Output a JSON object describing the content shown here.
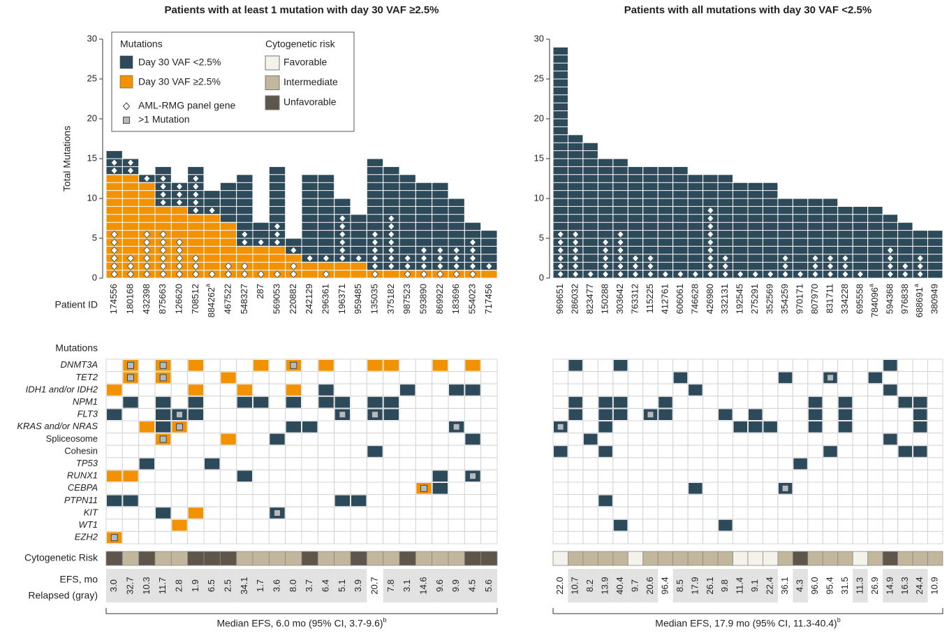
{
  "legend": {
    "mutations_title": "Mutations",
    "panel_gene": "AML-RMG panel gene",
    "multi": ">1 Mutation",
    "cytogenetic_title": "Cytogenetic risk"
  },
  "row_labels": {
    "patient_id": "Patient ID",
    "mutations": "Mutations",
    "cytogenetic": "Cytogenetic Risk",
    "efs": "EFS, mo",
    "relapsed": "Relapsed (gray)"
  },
  "mutation_rows": [
    {
      "label": "DNMT3A",
      "italic": true
    },
    {
      "label": "TET2",
      "italic": true
    },
    {
      "label": "IDH1 and/or IDH2",
      "italic": true
    },
    {
      "label": "NPM1",
      "italic": true
    },
    {
      "label": "FLT3",
      "italic": true
    },
    {
      "label": "KRAS and/or NRAS",
      "italic": true
    },
    {
      "label": "Spliceosome",
      "italic": false
    },
    {
      "label": "Cohesin",
      "italic": false
    },
    {
      "label": "TP53",
      "italic": true
    },
    {
      "label": "RUNX1",
      "italic": true
    },
    {
      "label": "CEBPA",
      "italic": true
    },
    {
      "label": "PTPN11",
      "italic": true
    },
    {
      "label": "KIT",
      "italic": true
    },
    {
      "label": "WT1",
      "italic": true
    },
    {
      "label": "EZH2",
      "italic": true
    }
  ],
  "cytogenetic_categories": [
    {
      "label": "Favorable",
      "color": "#f4f2ea"
    },
    {
      "label": "Intermediate",
      "color": "#c2b79c"
    },
    {
      "label": "Unfavorable",
      "color": "#5f564b"
    }
  ],
  "relapsed_color": "#e2e2e2",
  "multi_color": "#b9b9b9",
  "chart_data": [
    {
      "type": "stacked_bar",
      "title": "Patients with at least 1 mutation with day 30 VAF ≥2.5%",
      "ylabel": "Total Mutations",
      "ylim": [
        0,
        30
      ],
      "yticks": [
        0,
        5,
        10,
        15,
        20,
        25,
        30
      ],
      "categories": [
        "174556",
        "180168",
        "432398",
        "875663",
        "126620",
        "708512",
        "884262",
        "467522",
        "548327",
        "287",
        "569053",
        "220882",
        "242129",
        "296361",
        "196371",
        "959485",
        "135035",
        "375182",
        "987523",
        "593890",
        "869922",
        "183696",
        "554023",
        "717456"
      ],
      "category_notes": [
        null,
        null,
        null,
        null,
        null,
        null,
        "a",
        null,
        null,
        null,
        null,
        null,
        null,
        null,
        null,
        null,
        null,
        null,
        null,
        null,
        null,
        null,
        null,
        null
      ],
      "series": [
        {
          "name": "Day 30 VAF <2.5%",
          "color": "#2d4a5a",
          "values": [
            3,
            2,
            1,
            5,
            3,
            6,
            3,
            5,
            9,
            3,
            10,
            2,
            11,
            11,
            8,
            6,
            14,
            13,
            12,
            11,
            11,
            9,
            6,
            5
          ],
          "panel_genes": [
            2,
            2,
            1,
            4,
            3,
            5,
            1,
            0,
            2,
            1,
            3,
            1,
            1,
            1,
            6,
            1,
            5,
            7,
            2,
            3,
            3,
            3,
            4,
            1
          ]
        },
        {
          "name": "Day 30 VAF ≥2.5%",
          "color": "#f39200",
          "values": [
            13,
            13,
            12,
            9,
            9,
            8,
            8,
            7,
            4,
            4,
            4,
            3,
            2,
            2,
            2,
            2,
            1,
            1,
            1,
            1,
            1,
            1,
            1,
            1
          ],
          "panel_genes": [
            6,
            3,
            6,
            6,
            5,
            3,
            1,
            2,
            2,
            1,
            1,
            2,
            0,
            1,
            0,
            0,
            1,
            0,
            1,
            1,
            1,
            1,
            1,
            0
          ]
        }
      ],
      "matrix": [
        [
          0,
          4,
          0,
          4,
          0,
          2,
          0,
          0,
          0,
          2,
          0,
          4,
          0,
          2,
          0,
          0,
          2,
          2,
          0,
          0,
          2,
          0,
          2,
          0
        ],
        [
          0,
          4,
          0,
          4,
          0,
          0,
          0,
          2,
          0,
          0,
          0,
          0,
          0,
          0,
          0,
          0,
          0,
          0,
          0,
          0,
          0,
          0,
          0,
          0
        ],
        [
          2,
          0,
          0,
          0,
          0,
          2,
          0,
          0,
          2,
          0,
          0,
          2,
          0,
          1,
          0,
          0,
          0,
          0,
          1,
          0,
          0,
          1,
          1,
          0
        ],
        [
          0,
          1,
          0,
          1,
          0,
          1,
          0,
          0,
          1,
          1,
          0,
          1,
          0,
          1,
          1,
          0,
          1,
          1,
          0,
          0,
          0,
          0,
          0,
          0
        ],
        [
          1,
          0,
          0,
          1,
          3,
          1,
          0,
          0,
          0,
          0,
          0,
          0,
          0,
          0,
          3,
          0,
          3,
          1,
          0,
          0,
          0,
          0,
          0,
          0
        ],
        [
          0,
          0,
          2,
          1,
          4,
          0,
          0,
          0,
          0,
          0,
          0,
          1,
          1,
          0,
          0,
          0,
          0,
          0,
          0,
          0,
          0,
          3,
          0,
          0
        ],
        [
          0,
          0,
          0,
          4,
          0,
          0,
          0,
          2,
          0,
          0,
          1,
          0,
          0,
          0,
          0,
          0,
          0,
          0,
          0,
          0,
          0,
          0,
          1,
          0
        ],
        [
          0,
          0,
          0,
          0,
          0,
          0,
          0,
          0,
          0,
          0,
          0,
          0,
          0,
          0,
          0,
          0,
          1,
          0,
          0,
          0,
          0,
          0,
          0,
          0
        ],
        [
          0,
          0,
          1,
          0,
          0,
          0,
          1,
          0,
          0,
          0,
          0,
          0,
          0,
          0,
          0,
          0,
          0,
          0,
          0,
          0,
          0,
          0,
          0,
          0
        ],
        [
          2,
          2,
          0,
          0,
          0,
          0,
          0,
          0,
          1,
          0,
          0,
          0,
          0,
          0,
          0,
          0,
          0,
          0,
          0,
          0,
          1,
          0,
          3,
          0
        ],
        [
          0,
          0,
          0,
          0,
          0,
          0,
          0,
          0,
          0,
          0,
          0,
          0,
          0,
          0,
          0,
          0,
          0,
          0,
          0,
          4,
          1,
          0,
          0,
          0
        ],
        [
          1,
          1,
          0,
          0,
          0,
          0,
          0,
          0,
          0,
          0,
          0,
          0,
          0,
          0,
          1,
          1,
          0,
          0,
          0,
          0,
          0,
          0,
          0,
          0
        ],
        [
          0,
          0,
          0,
          1,
          0,
          2,
          0,
          0,
          0,
          0,
          3,
          0,
          0,
          0,
          0,
          0,
          0,
          0,
          0,
          0,
          0,
          0,
          0,
          0
        ],
        [
          0,
          0,
          0,
          0,
          2,
          0,
          0,
          0,
          0,
          0,
          0,
          0,
          0,
          0,
          0,
          0,
          0,
          0,
          0,
          0,
          0,
          0,
          0,
          0
        ],
        [
          4,
          0,
          0,
          0,
          0,
          0,
          0,
          0,
          0,
          0,
          0,
          0,
          0,
          0,
          0,
          0,
          0,
          0,
          0,
          0,
          0,
          0,
          0,
          0
        ]
      ],
      "cytogenetic_risk": [
        2,
        1,
        2,
        1,
        1,
        2,
        2,
        2,
        1,
        1,
        1,
        1,
        2,
        1,
        1,
        2,
        1,
        1,
        2,
        1,
        1,
        1,
        2,
        2
      ],
      "efs": [
        "3.0",
        "32.7",
        "10.3",
        "11.7",
        "2.8",
        "1.9",
        "6.5",
        "2.5",
        "34.1",
        "1.7",
        "3.6",
        "8.0",
        "3.7",
        "6.4",
        "5.1",
        "3.9",
        "20.7",
        "7.8",
        "3.1",
        "14.6",
        "9.6",
        "9.9",
        "4.5",
        "5.6"
      ],
      "relapsed": [
        true,
        true,
        true,
        true,
        true,
        true,
        true,
        true,
        true,
        true,
        true,
        true,
        true,
        true,
        true,
        true,
        false,
        true,
        true,
        true,
        true,
        true,
        true,
        true
      ],
      "footer": "Median EFS, 6.0 mo (95% CI, 3.7-9.6)",
      "footer_note": "b"
    },
    {
      "type": "stacked_bar",
      "title": "Patients with all mutations with day 30 VAF <2.5%",
      "ylim": [
        0,
        30
      ],
      "yticks": [
        0,
        5,
        10,
        15,
        20,
        25,
        30
      ],
      "categories": [
        "969651",
        "286032",
        "823477",
        "150288",
        "303642",
        "763312",
        "115225",
        "412761",
        "606061",
        "746628",
        "426980",
        "332131",
        "192545",
        "275291",
        "352569",
        "354259",
        "970171",
        "807970",
        "831711",
        "334228",
        "695558",
        "784096",
        "594368",
        "976838",
        "688691",
        "380949"
      ],
      "category_notes": [
        null,
        null,
        null,
        null,
        null,
        null,
        null,
        null,
        null,
        null,
        null,
        null,
        null,
        null,
        null,
        null,
        null,
        null,
        null,
        null,
        null,
        "a",
        null,
        null,
        "a",
        null
      ],
      "series": [
        {
          "color": "#2d4a5a",
          "values": [
            29,
            18,
            17,
            15,
            15,
            14,
            14,
            14,
            14,
            13,
            13,
            13,
            12,
            12,
            12,
            10,
            10,
            10,
            10,
            9,
            9,
            9,
            8,
            7,
            6,
            6
          ],
          "panel_genes": [
            6,
            6,
            1,
            5,
            6,
            3,
            3,
            1,
            1,
            1,
            9,
            3,
            1,
            1,
            1,
            3,
            1,
            3,
            3,
            3,
            1,
            0,
            4,
            2,
            3,
            0
          ]
        }
      ],
      "matrix": [
        [
          0,
          1,
          0,
          0,
          1,
          0,
          0,
          0,
          0,
          0,
          0,
          0,
          0,
          0,
          0,
          0,
          0,
          0,
          0,
          0,
          0,
          0,
          1,
          0,
          0,
          0
        ],
        [
          0,
          0,
          0,
          0,
          0,
          0,
          0,
          0,
          1,
          0,
          0,
          0,
          0,
          0,
          0,
          1,
          0,
          0,
          3,
          0,
          0,
          1,
          0,
          0,
          0,
          0
        ],
        [
          0,
          0,
          0,
          0,
          0,
          0,
          0,
          0,
          0,
          1,
          0,
          0,
          0,
          0,
          0,
          0,
          0,
          0,
          0,
          0,
          0,
          0,
          1,
          0,
          0,
          0
        ],
        [
          0,
          1,
          0,
          1,
          1,
          0,
          0,
          1,
          0,
          0,
          0,
          0,
          0,
          0,
          0,
          0,
          0,
          1,
          0,
          1,
          0,
          0,
          0,
          1,
          1,
          0
        ],
        [
          0,
          1,
          0,
          1,
          1,
          0,
          3,
          1,
          0,
          0,
          0,
          1,
          0,
          1,
          0,
          0,
          0,
          1,
          0,
          1,
          0,
          0,
          0,
          0,
          1,
          0
        ],
        [
          3,
          0,
          0,
          1,
          0,
          0,
          0,
          0,
          0,
          0,
          0,
          0,
          1,
          1,
          1,
          0,
          0,
          1,
          0,
          1,
          0,
          0,
          0,
          0,
          1,
          0
        ],
        [
          0,
          0,
          1,
          0,
          0,
          0,
          0,
          0,
          0,
          0,
          0,
          0,
          0,
          0,
          0,
          0,
          0,
          0,
          0,
          0,
          0,
          0,
          1,
          0,
          0,
          0
        ],
        [
          1,
          0,
          0,
          1,
          0,
          0,
          0,
          0,
          0,
          0,
          0,
          0,
          0,
          0,
          0,
          0,
          0,
          0,
          1,
          0,
          0,
          0,
          0,
          1,
          1,
          0
        ],
        [
          0,
          0,
          0,
          0,
          0,
          0,
          0,
          0,
          0,
          0,
          0,
          0,
          0,
          0,
          0,
          0,
          1,
          0,
          0,
          0,
          0,
          0,
          0,
          0,
          0,
          0
        ],
        [
          0,
          0,
          0,
          0,
          0,
          0,
          0,
          0,
          0,
          0,
          0,
          0,
          0,
          0,
          0,
          0,
          0,
          0,
          0,
          0,
          0,
          0,
          0,
          0,
          0,
          0
        ],
        [
          0,
          0,
          0,
          0,
          0,
          0,
          0,
          0,
          0,
          1,
          0,
          0,
          0,
          0,
          0,
          3,
          0,
          0,
          0,
          0,
          0,
          0,
          0,
          0,
          0,
          0
        ],
        [
          0,
          0,
          0,
          1,
          0,
          0,
          0,
          0,
          0,
          0,
          0,
          0,
          0,
          0,
          0,
          0,
          0,
          0,
          0,
          0,
          0,
          0,
          0,
          0,
          0,
          0
        ],
        [
          0,
          0,
          0,
          0,
          0,
          0,
          0,
          0,
          0,
          0,
          0,
          0,
          0,
          0,
          0,
          0,
          0,
          0,
          0,
          0,
          0,
          0,
          0,
          0,
          0,
          0
        ],
        [
          0,
          0,
          0,
          0,
          1,
          0,
          0,
          0,
          0,
          0,
          0,
          1,
          0,
          0,
          0,
          0,
          0,
          0,
          0,
          0,
          0,
          0,
          0,
          0,
          0,
          0
        ],
        [
          0,
          0,
          0,
          0,
          0,
          0,
          0,
          0,
          0,
          0,
          0,
          0,
          0,
          0,
          0,
          0,
          0,
          0,
          0,
          0,
          0,
          0,
          0,
          0,
          0,
          0
        ]
      ],
      "cytogenetic_risk": [
        0,
        1,
        1,
        1,
        1,
        0,
        1,
        1,
        1,
        1,
        1,
        1,
        0,
        0,
        0,
        1,
        2,
        1,
        1,
        1,
        0,
        1,
        2,
        1,
        1,
        1
      ],
      "efs": [
        "22.0",
        "10.7",
        "8.2",
        "13.9",
        "40.4",
        "9.7",
        "20.6",
        "96.4",
        "8.5",
        "17.9",
        "26.1",
        "9.8",
        "11.4",
        "9.1",
        "22.4",
        "36.1",
        "4.3",
        "96.0",
        "95.4",
        "31.5",
        "11.3",
        "26.9",
        "14.9",
        "16.3",
        "24.4",
        "10.9"
      ],
      "relapsed": [
        false,
        true,
        true,
        true,
        true,
        true,
        true,
        false,
        true,
        true,
        true,
        true,
        true,
        true,
        true,
        false,
        true,
        false,
        false,
        false,
        true,
        false,
        true,
        true,
        true,
        false
      ],
      "footer": "Median EFS, 17.9 mo (95% CI, 11.3-40.4)",
      "footer_note": "b"
    }
  ]
}
